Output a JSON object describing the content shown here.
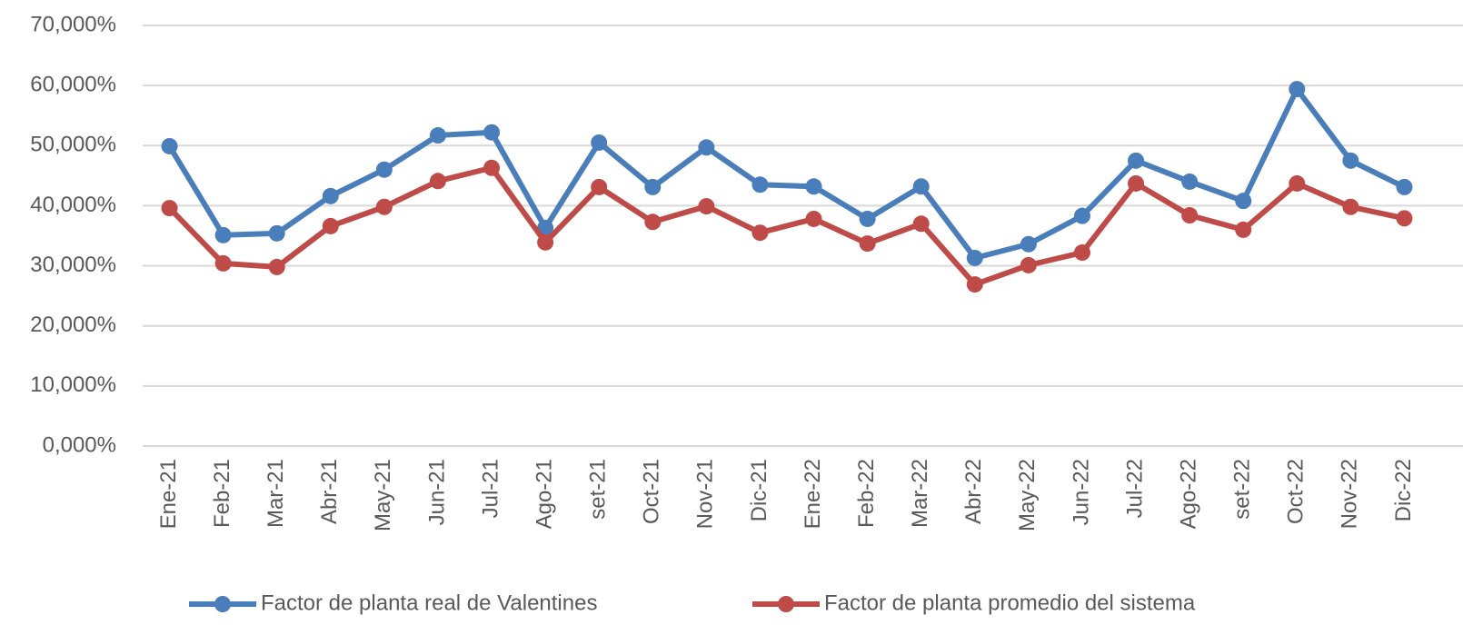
{
  "chart_data": {
    "type": "line",
    "categories": [
      "Ene-21",
      "Feb-21",
      "Mar-21",
      "Abr-21",
      "May-21",
      "Jun-21",
      "Jul-21",
      "Ago-21",
      "set-21",
      "Oct-21",
      "Nov-21",
      "Dic-21",
      "Ene-22",
      "Feb-22",
      "Mar-22",
      "Abr-22",
      "May-22",
      "Jun-22",
      "Jul-22",
      "Ago-22",
      "set-22",
      "Oct-22",
      "Nov-22",
      "Dic-22"
    ],
    "series": [
      {
        "name": "Factor de planta real de Valentines",
        "color": "#4a7ebb",
        "values": [
          49.9,
          35.1,
          35.4,
          41.6,
          46.0,
          51.7,
          52.2,
          36.3,
          50.5,
          43.1,
          49.7,
          43.5,
          43.2,
          37.8,
          43.2,
          31.3,
          33.6,
          38.3,
          47.5,
          44.0,
          40.8,
          59.4,
          47.5,
          43.1
        ]
      },
      {
        "name": "Factor de planta promedio del sistema",
        "color": "#be4b48",
        "values": [
          39.6,
          30.4,
          29.8,
          36.6,
          39.8,
          44.1,
          46.3,
          33.9,
          43.1,
          37.3,
          39.9,
          35.5,
          37.8,
          33.7,
          37.0,
          26.9,
          30.1,
          32.2,
          43.7,
          38.4,
          36.0,
          43.7,
          39.8,
          37.9
        ]
      }
    ],
    "ylim": [
      0,
      70
    ],
    "yticks": [
      {
        "value": 0,
        "label": "0,000%"
      },
      {
        "value": 10,
        "label": "10,000%"
      },
      {
        "value": 20,
        "label": "20,000%"
      },
      {
        "value": 30,
        "label": "30,000%"
      },
      {
        "value": 40,
        "label": "40,000%"
      },
      {
        "value": 50,
        "label": "50,000%"
      },
      {
        "value": 60,
        "label": "60,000%"
      },
      {
        "value": 70,
        "label": "70,000%"
      }
    ],
    "grid": true,
    "legend": "bottom"
  }
}
